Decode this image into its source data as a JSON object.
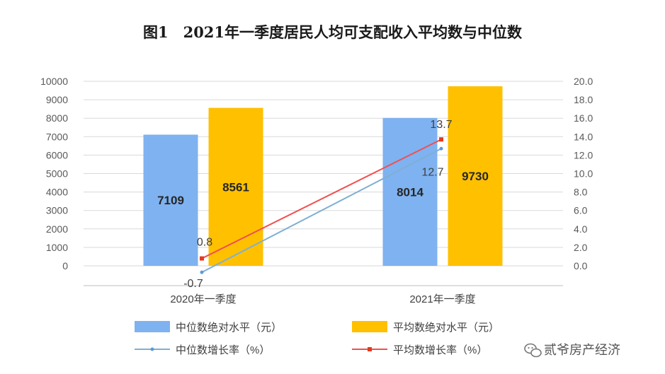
{
  "chart_data": {
    "type": "bar",
    "title": "图1　2021年一季度居民人均可支配收入平均数与中位数",
    "categories": [
      "2020年一季度",
      "2021年一季度"
    ],
    "series": [
      {
        "name": "中位数绝对水平（元）",
        "kind": "bar",
        "axis": "left",
        "values": [
          7109,
          8014
        ],
        "labels": [
          "7109",
          "8014"
        ],
        "color": "#7FB2F0"
      },
      {
        "name": "平均数绝对水平（元）",
        "kind": "bar",
        "axis": "left",
        "values": [
          8561,
          9730
        ],
        "labels": [
          "8561",
          "9730"
        ],
        "color": "#FFC000"
      },
      {
        "name": "中位数增长率（%）",
        "kind": "line",
        "axis": "right",
        "values": [
          -0.7,
          12.7
        ],
        "labels": [
          "-0.7",
          "12.7"
        ],
        "color": "#7FAFD4"
      },
      {
        "name": "平均数增长率（%）",
        "kind": "line",
        "axis": "right",
        "values": [
          0.8,
          13.7
        ],
        "labels": [
          "0.8",
          "13.7"
        ],
        "color": "#F05050"
      }
    ],
    "y_left": {
      "min": 0,
      "max": 10000,
      "ticks": [
        "0",
        "1000",
        "2000",
        "3000",
        "4000",
        "5000",
        "6000",
        "7000",
        "8000",
        "9000",
        "10000"
      ]
    },
    "y_right": {
      "min": 0,
      "max": 20,
      "ticks": [
        "0.0",
        "2.0",
        "4.0",
        "6.0",
        "8.0",
        "10.0",
        "12.0",
        "14.0",
        "16.0",
        "18.0",
        "20.0"
      ]
    },
    "grid": true,
    "legend_position": "bottom"
  },
  "watermark": "贰爷房产经济"
}
